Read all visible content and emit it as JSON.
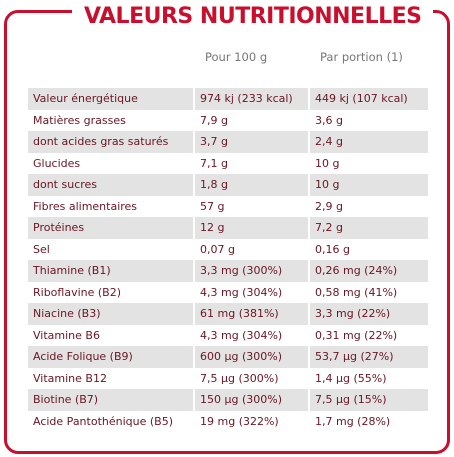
{
  "header": {
    "title": "VALEURS NUTRITIONNELLES"
  },
  "table": {
    "columns": [
      "Pour 100 g",
      "Par portion (1)"
    ],
    "rows": [
      [
        "Valeur énergétique",
        "974 kj (233 kcal)",
        "449 kj (107 kcal)"
      ],
      [
        "Matières grasses",
        "7,9 g",
        "3,6 g"
      ],
      [
        "dont acides gras saturés",
        "3,7 g",
        "2,4 g"
      ],
      [
        "Glucides",
        "7,1 g",
        "10 g"
      ],
      [
        "dont sucres",
        "1,8 g",
        "10 g"
      ],
      [
        "Fibres alimentaires",
        "57 g",
        "2,9 g"
      ],
      [
        "Protéines",
        "12 g",
        "7,2 g"
      ],
      [
        "Sel",
        "0,07 g",
        "0,16 g"
      ],
      [
        "Thiamine (B1)",
        "3,3 mg (300%)",
        "0,26 mg (24%)"
      ],
      [
        "Riboflavine (B2)",
        "4,3 mg (304%)",
        "0,58 mg (41%)"
      ],
      [
        "Niacine (B3)",
        "61 mg (381%)",
        "3,3 mg (22%)"
      ],
      [
        "Vitamine B6",
        "4,3 mg (304%)",
        "0,31 mg (22%)"
      ],
      [
        "Acide Folique (B9)",
        "600 µg (300%)",
        "53,7 µg (27%)"
      ],
      [
        "Vitamine B12",
        "7,5 µg (300%)",
        "1,4 µg (55%)"
      ],
      [
        "Biotine (B7)",
        "150 µg (300%)",
        "7,5 µg (15%)"
      ],
      [
        "Acide Pantothénique (B5)",
        "19 mg (322%)",
        "1,7 mg (28%)"
      ]
    ]
  }
}
